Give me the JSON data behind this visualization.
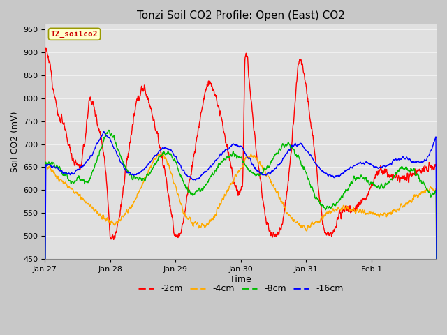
{
  "title": "Tonzi Soil CO2 Profile: Open (East) CO2",
  "xlabel": "Time",
  "ylabel": "Soil CO2 (mV)",
  "ylim": [
    450,
    960
  ],
  "yticks": [
    450,
    500,
    550,
    600,
    650,
    700,
    750,
    800,
    850,
    900,
    950
  ],
  "plot_bg_color": "#e0e0e0",
  "fig_bg_color": "#c8c8c8",
  "grid_color": "#f0f0f0",
  "label_box_text": "TZ_soilco2",
  "label_box_facecolor": "#ffffcc",
  "label_box_edgecolor": "#999900",
  "label_box_textcolor": "#cc0000",
  "series_colors": [
    "#ff0000",
    "#ffaa00",
    "#00bb00",
    "#0000ff"
  ],
  "series_labels": [
    "-2cm",
    "-4cm",
    "-8cm",
    "-16cm"
  ],
  "line_width": 1.0,
  "title_fontsize": 11,
  "axis_label_fontsize": 9,
  "tick_fontsize": 8,
  "legend_fontsize": 9,
  "x_tick_labels": [
    "Jan 27",
    "Jan 28",
    "Jan 29",
    "Jan 30",
    "Jan 31",
    "Feb 1"
  ]
}
